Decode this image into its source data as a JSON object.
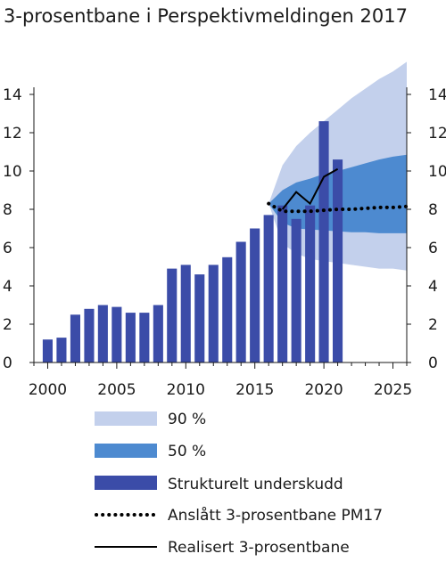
{
  "chart_data": {
    "type": "bar",
    "title": "3-prosentbane i Perspektivmeldingen 2017",
    "xlabel": "",
    "ylabel": "",
    "xlim": [
      1999,
      2026
    ],
    "ylim": [
      0,
      14
    ],
    "x_ticks": [
      "2000",
      "2005",
      "2010",
      "2015",
      "2020",
      "2025"
    ],
    "y_ticks": [
      "0",
      "2",
      "4",
      "6",
      "8",
      "10",
      "12",
      "14"
    ],
    "legend_position": "bottom",
    "legend": [
      "90 %",
      "50 %",
      "Strukturelt underskudd",
      "Anslått 3-prosentbane PM17",
      "Realisert 3-prosentbane"
    ],
    "colors": {
      "band90": "#c3d0ec",
      "band50": "#4d8ad0",
      "bars": "#3b4ca8",
      "line": "#000000"
    },
    "bars": {
      "name": "Strukturelt underskudd",
      "x": [
        2000,
        2001,
        2002,
        2003,
        2004,
        2005,
        2006,
        2007,
        2008,
        2009,
        2010,
        2011,
        2012,
        2013,
        2014,
        2015,
        2016,
        2017,
        2018,
        2019,
        2020,
        2021
      ],
      "values": [
        1.2,
        1.3,
        2.5,
        2.8,
        3.0,
        2.9,
        2.6,
        2.6,
        3.0,
        4.9,
        5.1,
        4.6,
        5.1,
        5.5,
        6.3,
        7.0,
        7.7,
        8.2,
        7.5,
        8.2,
        12.6,
        10.6
      ]
    },
    "band90": {
      "name": "90 %",
      "x": [
        2016,
        2017,
        2018,
        2019,
        2020,
        2021,
        2022,
        2023,
        2024,
        2025,
        2026
      ],
      "lower": [
        8.3,
        6.2,
        5.7,
        5.4,
        5.3,
        5.2,
        5.1,
        5.0,
        4.9,
        4.9,
        4.8
      ],
      "upper": [
        8.3,
        10.3,
        11.3,
        12.0,
        12.6,
        13.2,
        13.8,
        14.3,
        14.8,
        15.2,
        15.7
      ]
    },
    "band50": {
      "name": "50 %",
      "x": [
        2016,
        2017,
        2018,
        2019,
        2020,
        2021,
        2022,
        2023,
        2024,
        2025,
        2026
      ],
      "lower": [
        8.3,
        7.3,
        7.0,
        6.95,
        6.9,
        6.85,
        6.8,
        6.8,
        6.75,
        6.75,
        6.75
      ],
      "upper": [
        8.3,
        9.0,
        9.4,
        9.6,
        9.85,
        10.0,
        10.2,
        10.4,
        10.6,
        10.75,
        10.85
      ]
    },
    "projection": {
      "name": "Anslått 3-prosentbane PM17",
      "x": [
        2016,
        2017,
        2018,
        2019,
        2020,
        2021,
        2022,
        2023,
        2024,
        2025,
        2026
      ],
      "values": [
        8.3,
        7.9,
        7.9,
        7.9,
        7.95,
        8.0,
        8.0,
        8.05,
        8.1,
        8.1,
        8.15
      ]
    },
    "realised": {
      "name": "Realisert 3-prosentbane",
      "x": [
        2017,
        2018,
        2019,
        2020,
        2021
      ],
      "values": [
        8.0,
        8.9,
        8.3,
        9.7,
        10.1
      ]
    }
  }
}
